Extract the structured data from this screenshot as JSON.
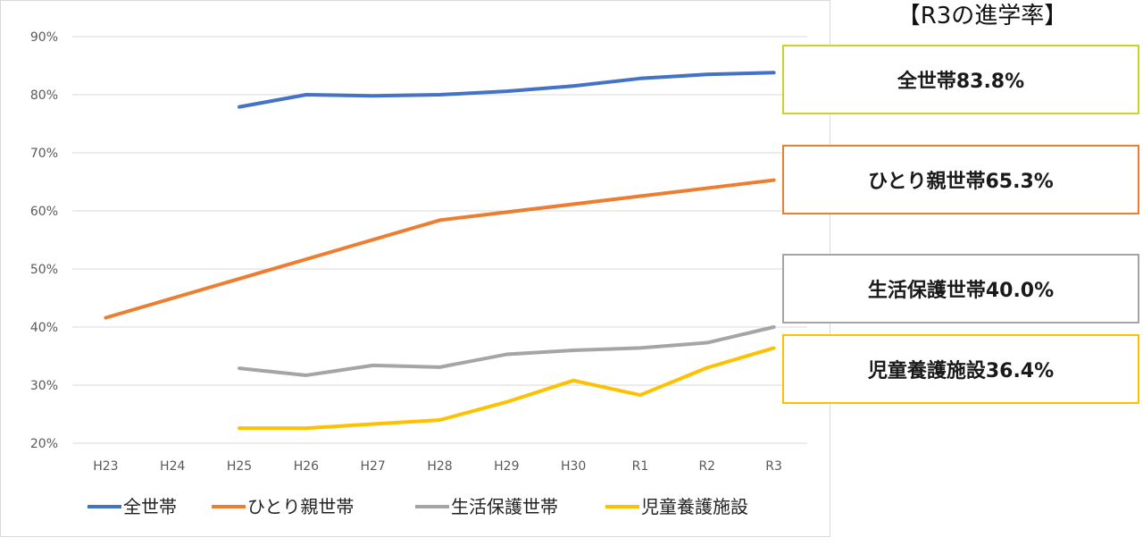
{
  "chart_data": {
    "type": "line",
    "categories": [
      "H23",
      "H24",
      "H25",
      "H26",
      "H27",
      "H28",
      "H29",
      "H30",
      "R1",
      "R2",
      "R3"
    ],
    "ylim": [
      20,
      90
    ],
    "yticks": [
      "20%",
      "30%",
      "40%",
      "50%",
      "60%",
      "70%",
      "80%",
      "90%"
    ],
    "grid": true,
    "legend_position": "bottom",
    "series": [
      {
        "name": "全世帯",
        "color": "#4472C4",
        "values": [
          null,
          null,
          77.9,
          80.0,
          79.8,
          80.0,
          80.6,
          81.5,
          82.8,
          83.5,
          83.8
        ]
      },
      {
        "name": "ひとり親世帯",
        "color": "#ED7D31",
        "values": [
          41.6,
          null,
          null,
          null,
          null,
          58.4,
          null,
          null,
          null,
          null,
          65.3
        ]
      },
      {
        "name": "生活保護世帯",
        "color": "#A5A5A5",
        "values": [
          null,
          null,
          32.9,
          31.7,
          33.4,
          33.1,
          35.3,
          36.0,
          36.4,
          37.3,
          40.0
        ]
      },
      {
        "name": "児童養護施設",
        "color": "#FFC000",
        "values": [
          null,
          null,
          22.6,
          22.6,
          23.3,
          24.0,
          27.1,
          30.8,
          28.3,
          33.0,
          36.4
        ]
      }
    ]
  },
  "summary": {
    "title": "【R3の進学率】",
    "items": [
      {
        "label": "全世帯83.8%",
        "border": "#C9D32A"
      },
      {
        "label": "ひとり親世帯65.3%",
        "border": "#ED7D31"
      },
      {
        "label": "生活保護世帯40.0%",
        "border": "#A5A5A5"
      },
      {
        "label": "児童養護施設36.4%",
        "border": "#FFC000"
      }
    ]
  }
}
